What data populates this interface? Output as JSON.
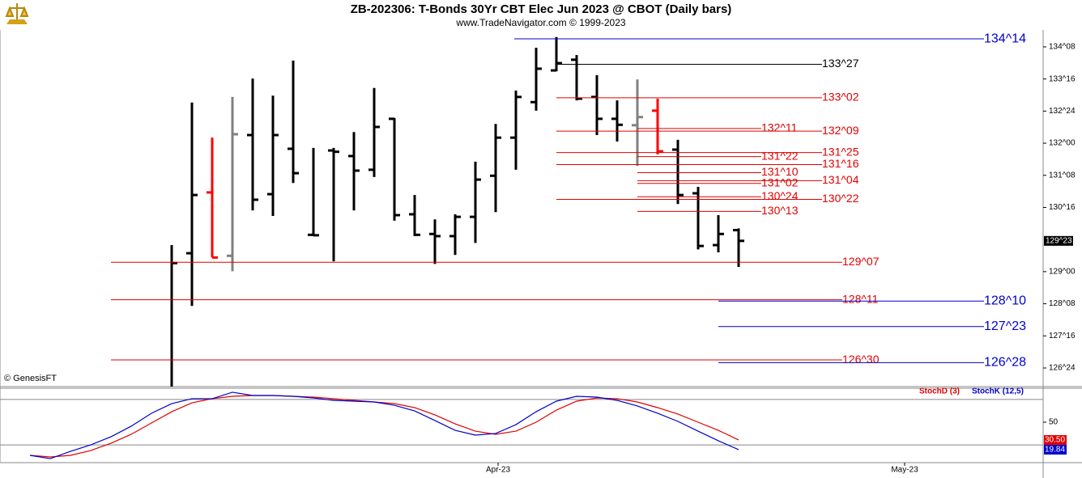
{
  "chart_data": [
    {
      "type": "ohlc",
      "title": "ZB-202306:  T-Bonds 30Yr CBT Elec Jun 2023 @ CBOT  (Daily bars)",
      "subtitle": "www.TradeNavigator.com © 1999-2023",
      "note": "© GenesisFT",
      "categories": [
        null,
        null,
        null,
        null,
        null,
        null,
        null,
        null,
        null,
        null,
        null,
        null,
        null,
        null,
        null,
        null,
        null,
        null,
        null,
        null,
        null,
        null,
        null,
        null,
        null,
        null,
        null,
        null,
        null
      ],
      "open": [
        126.2,
        129.43,
        130.85,
        129.37,
        132.19,
        130.81,
        131.87,
        129.86,
        131.83,
        131.7,
        131.38,
        132.57,
        130.34,
        129.88,
        129.83,
        130.28,
        131.24,
        132.13,
        132.96,
        133.7,
        133.95,
        133.08,
        132.57,
        132.42,
        132.76,
        131.85,
        130.83,
        129.62,
        129.97
      ],
      "high": [
        129.62,
        132.95,
        132.13,
        133.08,
        133.51,
        133.11,
        133.93,
        131.89,
        131.89,
        132.26,
        133.29,
        132.59,
        130.79,
        130.22,
        130.34,
        131.57,
        132.45,
        133.23,
        134.23,
        134.48,
        134.06,
        133.59,
        133.0,
        133.49,
        133.04,
        132.08,
        130.98,
        130.32,
        130.01
      ],
      "low": [
        126.0,
        128.2,
        129.33,
        129.01,
        130.43,
        130.3,
        131.07,
        129.83,
        129.24,
        130.43,
        131.21,
        130.19,
        129.83,
        129.18,
        129.39,
        129.67,
        130.39,
        131.38,
        132.76,
        133.68,
        133.0,
        132.19,
        132.04,
        131.47,
        131.74,
        130.58,
        129.52,
        129.45,
        129.11
      ],
      "close": [
        129.2,
        130.79,
        129.33,
        132.21,
        130.68,
        132.19,
        131.3,
        129.85,
        131.8,
        131.36,
        132.38,
        130.32,
        129.86,
        129.83,
        130.28,
        131.15,
        132.13,
        133.08,
        133.74,
        133.87,
        133.04,
        132.57,
        132.43,
        132.61,
        131.81,
        130.79,
        129.6,
        129.88,
        129.71875
      ],
      "bar_colors": [
        "#000000",
        "#000000",
        "#ff0000",
        "#808080",
        "#000000",
        "#000000",
        "#000000",
        "#000000",
        "#000000",
        "#000000",
        "#000000",
        "#000000",
        "#000000",
        "#000000",
        "#000000",
        "#000000",
        "#000000",
        "#000000",
        "#000000",
        "#000000",
        "#000000",
        "#000000",
        "#000000",
        "#808080",
        "#ff0000",
        "#000000",
        "#000000",
        "#000000",
        "#000000"
      ],
      "ylim": [
        126.315,
        134.646
      ],
      "yticks": [
        {
          "value": 134.25,
          "label": "134^08"
        },
        {
          "value": 133.5,
          "label": "133^16"
        },
        {
          "value": 132.75,
          "label": "132^24"
        },
        {
          "value": 132,
          "label": "132^00"
        },
        {
          "value": 131.25,
          "label": "131^08"
        },
        {
          "value": 130.5,
          "label": "130^16"
        },
        {
          "value": 129,
          "label": "129^00"
        },
        {
          "value": 128.25,
          "label": "128^08"
        },
        {
          "value": 127.5,
          "label": "127^16"
        },
        {
          "value": 126.75,
          "label": "126^24"
        }
      ],
      "last_price": {
        "value": 129.71875,
        "label": "129^23"
      },
      "levels": [
        {
          "value": 134.4375,
          "label": "134^14",
          "color": "#0000cc"
        },
        {
          "value": 133.84375,
          "label": "133^27",
          "color": "#000000"
        },
        {
          "value": 133.0625,
          "label": "133^02",
          "color": "#e00000"
        },
        {
          "value": 132.34375,
          "label": "132^11",
          "color": "#e00000"
        },
        {
          "value": 132.28125,
          "label": "132^09",
          "color": "#e00000"
        },
        {
          "value": 131.78125,
          "label": "131^25",
          "color": "#e00000"
        },
        {
          "value": 131.6875,
          "label": "131^22",
          "color": "#e00000"
        },
        {
          "value": 131.5,
          "label": "131^16",
          "color": "#e00000"
        },
        {
          "value": 131.3125,
          "label": "131^10",
          "color": "#e00000"
        },
        {
          "value": 131.125,
          "label": "131^04",
          "color": "#e00000"
        },
        {
          "value": 131.0625,
          "label": "131^02",
          "color": "#e00000"
        },
        {
          "value": 130.75,
          "label": "130^24",
          "color": "#e00000"
        },
        {
          "value": 130.6875,
          "label": "130^22",
          "color": "#e00000"
        },
        {
          "value": 130.40625,
          "label": "130^13",
          "color": "#e00000"
        },
        {
          "value": 129.21875,
          "label": "129^07",
          "color": "#e00000"
        },
        {
          "value": 128.34375,
          "label": "128^11",
          "color": "#e00000"
        },
        {
          "value": 128.3125,
          "label": "128^10",
          "color": "#0000cc"
        },
        {
          "value": 127.71875,
          "label": "127^23",
          "color": "#0000cc"
        },
        {
          "value": 126.9375,
          "label": "126^30",
          "color": "#e00000"
        },
        {
          "value": 126.875,
          "label": "126^28",
          "color": "#0000cc"
        }
      ]
    },
    {
      "type": "line",
      "categories": [
        null,
        null,
        null,
        null,
        null,
        null,
        null,
        null,
        null,
        null,
        null,
        null,
        null,
        null,
        null,
        null,
        null,
        null,
        null,
        null,
        null,
        null,
        null,
        null,
        null,
        null,
        null,
        null,
        null,
        null,
        null,
        null,
        null,
        null,
        null,
        null
      ],
      "series": [
        {
          "name": "StochD (3)",
          "color": "#e00000",
          "last_label": "30.50",
          "values": [
            13.6,
            11.8,
            13.6,
            18.9,
            26.9,
            36.7,
            49.1,
            61.5,
            71.3,
            75.8,
            78.4,
            79.3,
            79.3,
            78.4,
            77.5,
            75.8,
            74.0,
            72.2,
            70.4,
            66.0,
            58.0,
            48.2,
            40.2,
            36.7,
            40.2,
            50.0,
            63.3,
            73.1,
            76.6,
            75.8,
            72.2,
            66.0,
            58.9,
            50.0,
            41.1,
            30.5
          ]
        },
        {
          "name": "StochK (12,5)",
          "color": "#0000cc",
          "last_label": "19.84",
          "values": [
            13.6,
            10.0,
            18.0,
            25.1,
            34.0,
            45.6,
            59.8,
            70.4,
            75.8,
            75.8,
            82.9,
            79.3,
            79.3,
            78.4,
            76.6,
            74.0,
            73.1,
            72.2,
            68.6,
            62.4,
            51.8,
            41.1,
            35.8,
            37.6,
            47.3,
            61.5,
            73.1,
            78.4,
            77.5,
            74.0,
            67.8,
            59.8,
            50.9,
            40.2,
            29.6,
            19.84
          ]
        }
      ],
      "ylim": [
        5.6,
        87.3
      ],
      "yticks": [
        50
      ],
      "levels": [
        25,
        75
      ],
      "xticks": [
        {
          "value": 23.12,
          "label": "Apr-23"
        },
        {
          "value": 43.2,
          "label": "May-23"
        }
      ]
    }
  ]
}
